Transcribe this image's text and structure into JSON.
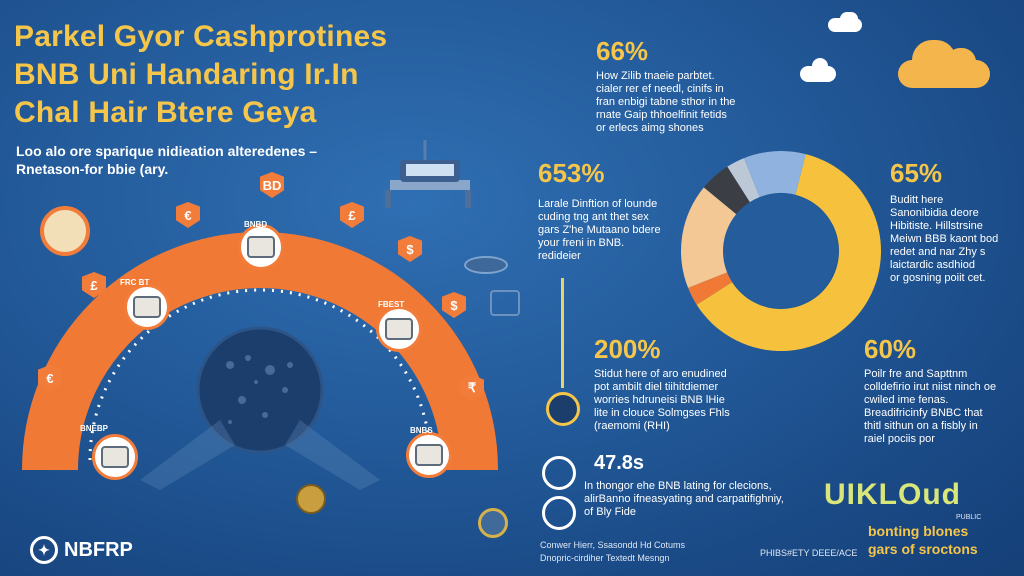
{
  "header": {
    "title_lines": [
      "Parkel Gyor Cashprotines",
      "BNB Uni Handaring Ir.In",
      "Chal Hair  Btere Geya"
    ],
    "subtitle_lines": [
      "Loo alo ore sparique nidieation alteredenes –",
      "Rnetason-for bbie (ary."
    ]
  },
  "diagram": {
    "badges": [
      "BD",
      "£",
      "€",
      "$",
      "$",
      "₹",
      "£",
      "€"
    ],
    "node_labels": [
      "FRC BT",
      "BNBD",
      "FBEST",
      "BNEBP",
      "BNBS"
    ]
  },
  "stats": [
    {
      "value": "66%",
      "lines": [
        "How Zilib tnaeie parbtet.",
        "cialer rer ef needl, cinifs in",
        "fran enbigi tabne sthor in the",
        "rnate Gaip thhoelfinit fetids",
        "or erlecs aimg shones"
      ]
    },
    {
      "value": "653%",
      "lines": [
        "Larale Dinftion of lounde",
        "cuding tng ant thet sex",
        "gars Z'he Mutaano bdere",
        "your freni in BNB.",
        "redideier"
      ]
    },
    {
      "value": "65%",
      "lines": [
        "Buditt here",
        "Sanonibidia deore",
        "Hibitiste. Hillstrsine",
        "Meiwn BBB kaont bod",
        "redet and nar Zhy s",
        "laictardic asdhiod",
        "or gosning poiit cet."
      ]
    },
    {
      "value": "200%",
      "lines": [
        "Stidut here of aro enudined",
        "pot ambilt diel tiihitdiemer",
        "worries hdruneisi BNB lHie",
        "lite in clouce Solmgses Fhls",
        "(raemomi (RHI)"
      ]
    },
    {
      "value": "60%",
      "lines": [
        "Poilr fre and Sapttnm",
        "colldefirio irut niist ninch oe",
        "cwiled ime fenas.",
        "Breadifricinfy BNBC that",
        "thitl sithun on a fisbly in",
        "raiel pociis por"
      ]
    },
    {
      "value": "47.8s",
      "lines": [
        "In thongor ehe BNB lating for clecions,",
        "alirBanno ifneasyating and carpatifighniy,",
        "of Bly Fide"
      ]
    }
  ],
  "donut": {
    "segments": [
      {
        "label": "yellow",
        "value": 62,
        "color": "#f6c23e"
      },
      {
        "label": "orange",
        "value": 3,
        "color": "#f07a35"
      },
      {
        "label": "peach",
        "value": 17,
        "color": "#f3c894"
      },
      {
        "label": "charcoal",
        "value": 5,
        "color": "#3b3e44"
      },
      {
        "label": "light-gray",
        "value": 3,
        "color": "#bcc8d6"
      },
      {
        "label": "light-blue",
        "value": 10,
        "color": "#8fb3de"
      }
    ]
  },
  "footer": {
    "logo": "NBFRP",
    "line1": "Conwer Hierr, Ssasondd  Hd Cotums",
    "line2": "Dnopric-cirdiher Textedt Mesngn",
    "credit": "PHIBS#ETY DEEE/ACE",
    "brand": "UIKLOud",
    "brand_tag": "PUBLIC",
    "brand_line1": "bonting blones",
    "brand_line2": "gars of sroctons"
  },
  "icons": [
    "cloud-icon",
    "coin-icon",
    "bridge-icon",
    "lock-icon",
    "target-icon",
    "building-icon"
  ]
}
